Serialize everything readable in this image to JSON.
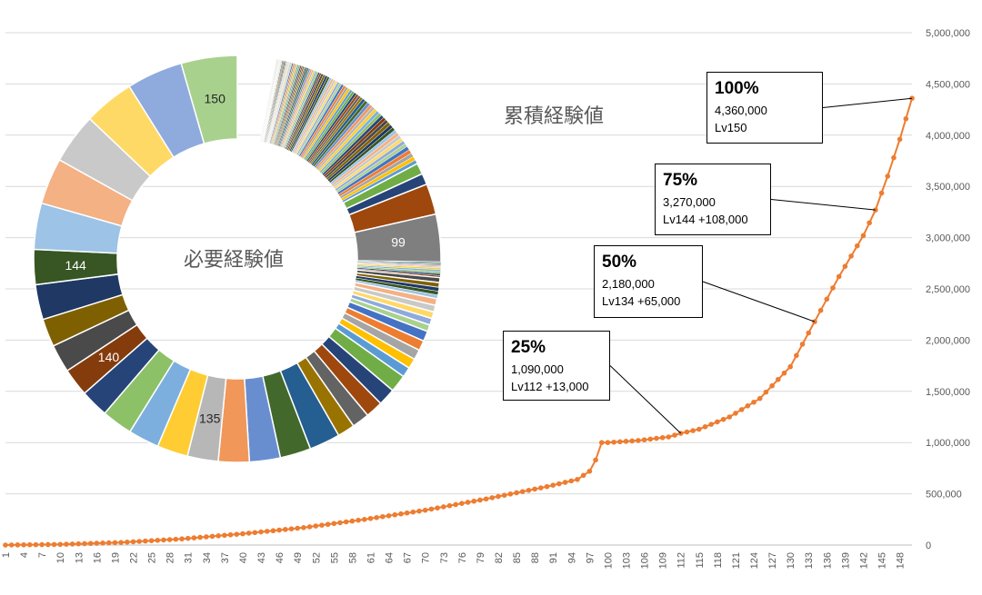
{
  "chart_data": [
    {
      "type": "line",
      "title": "累積経験値",
      "xlabel": "",
      "ylabel": "",
      "ylim": [
        0,
        5000000
      ],
      "y_ticks": [
        0,
        500000,
        1000000,
        1500000,
        2000000,
        2500000,
        3000000,
        3500000,
        4000000,
        4500000,
        5000000
      ],
      "y_tick_labels": [
        "0",
        "500,000",
        "1,000,000",
        "1,500,000",
        "2,000,000",
        "2,500,000",
        "3,000,000",
        "3,500,000",
        "4,000,000",
        "4,500,000",
        "5,000,000"
      ],
      "x_range": [
        1,
        150
      ],
      "x_tick_labels": [
        "1",
        "4",
        "7",
        "10",
        "13",
        "16",
        "19",
        "22",
        "25",
        "28",
        "31",
        "34",
        "37",
        "40",
        "43",
        "46",
        "49",
        "52",
        "55",
        "58",
        "61",
        "64",
        "67",
        "70",
        "73",
        "76",
        "79",
        "82",
        "85",
        "88",
        "91",
        "94",
        "97",
        "100",
        "103",
        "106",
        "109",
        "112",
        "115",
        "118",
        "121",
        "124",
        "127",
        "130",
        "133",
        "136",
        "139",
        "142",
        "145",
        "148"
      ],
      "grid": true,
      "series": [
        {
          "name": "累積経験値",
          "color": "#ED7D31",
          "points": [
            [
              1,
              0
            ],
            [
              10,
              6000
            ],
            [
              20,
              25000
            ],
            [
              30,
              60000
            ],
            [
              40,
              110000
            ],
            [
              50,
              170000
            ],
            [
              60,
              250000
            ],
            [
              70,
              340000
            ],
            [
              80,
              450000
            ],
            [
              90,
              570000
            ],
            [
              95,
              640000
            ],
            [
              97,
              720000
            ],
            [
              98,
              830000
            ],
            [
              99,
              1000000
            ],
            [
              100,
              1000000
            ],
            [
              105,
              1020000
            ],
            [
              110,
              1055000
            ],
            [
              112,
              1090000
            ],
            [
              115,
              1130000
            ],
            [
              120,
              1250000
            ],
            [
              125,
              1430000
            ],
            [
              130,
              1740000
            ],
            [
              134,
              2180000
            ],
            [
              138,
              2620000
            ],
            [
              142,
              3020000
            ],
            [
              144,
              3270000
            ],
            [
              146,
              3600000
            ],
            [
              148,
              3960000
            ],
            [
              150,
              4360000
            ]
          ]
        }
      ],
      "annotations": [
        {
          "id": "a25",
          "percent": "25%",
          "value": "1,090,000",
          "level": "Lv112  +13,000",
          "x": 112,
          "y": 1090000
        },
        {
          "id": "a50",
          "percent": "50%",
          "value": "2,180,000",
          "level": "Lv134  +65,000",
          "x": 134,
          "y": 2180000
        },
        {
          "id": "a75",
          "percent": "75%",
          "value": "3,270,000",
          "level": "Lv144  +108,000",
          "x": 144,
          "y": 3270000
        },
        {
          "id": "a100",
          "percent": "100%",
          "value": "4,360,000",
          "level": "Lv150",
          "x": 150,
          "y": 4360000
        }
      ]
    },
    {
      "type": "pie",
      "title": "必要経験値",
      "donut": true,
      "gap_after_slice": 150,
      "slice_labels": {
        "99": "99",
        "135": "135",
        "140": "140",
        "144": "144",
        "150": "150"
      },
      "palette": [
        "#4472C4",
        "#ED7D31",
        "#A5A5A5",
        "#FFC000",
        "#5B9BD5",
        "#70AD47",
        "#264478",
        "#9E480E",
        "#636363",
        "#997300",
        "#255E91",
        "#43682B",
        "#698ED0",
        "#F1975A",
        "#B7B7B7",
        "#FFCD33",
        "#7CAFDD",
        "#8CC168",
        "#264478",
        "#843C0C",
        "#4A4A4A",
        "#7F6000",
        "#1F3864",
        "#375623",
        "#9DC3E6",
        "#F4B183",
        "#C9C9C9",
        "#FFD966",
        "#8FAADC",
        "#A9D18E"
      ],
      "slice_colors": {
        "99": "#7F7F7F",
        "150": "#A9D18E"
      }
    }
  ]
}
